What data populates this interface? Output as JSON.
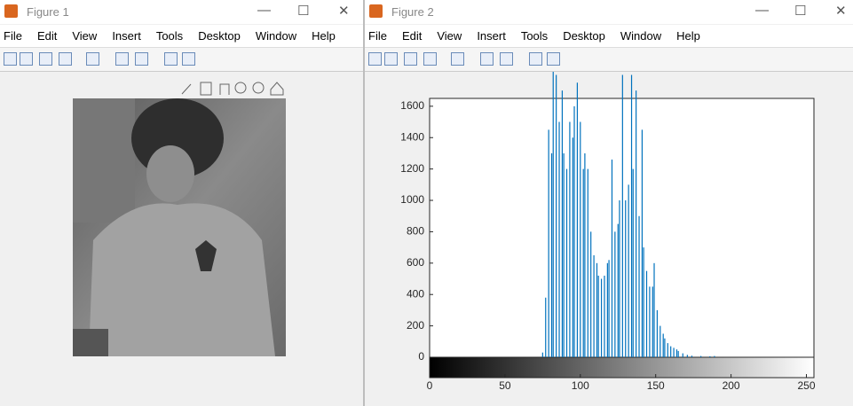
{
  "windows": [
    {
      "title": "Figure 1",
      "menu": [
        "File",
        "Edit",
        "View",
        "Insert",
        "Tools",
        "Desktop",
        "Window",
        "Help"
      ]
    },
    {
      "title": "Figure 2",
      "menu": [
        "File",
        "Edit",
        "View",
        "Insert",
        "Tools",
        "Desktop",
        "Window",
        "Help"
      ],
      "chart_data": {
        "type": "stem",
        "color": "#0072bd",
        "x": [
          75,
          77,
          79,
          81,
          82,
          84,
          86,
          88,
          89,
          91,
          93,
          95,
          96,
          98,
          100,
          102,
          103,
          105,
          107,
          109,
          111,
          112,
          114,
          116,
          118,
          119,
          121,
          123,
          125,
          126,
          128,
          130,
          132,
          134,
          135,
          137,
          139,
          141,
          142,
          144,
          146,
          148,
          149,
          151,
          153,
          155,
          156,
          158,
          160,
          162,
          164,
          165,
          168,
          171,
          174,
          180,
          186,
          189
        ],
        "values": [
          30,
          380,
          1450,
          1300,
          1900,
          1800,
          1500,
          1700,
          1300,
          1200,
          1500,
          1400,
          1600,
          1750,
          1500,
          1200,
          1300,
          1200,
          800,
          650,
          600,
          520,
          500,
          520,
          600,
          620,
          1260,
          800,
          850,
          1000,
          1800,
          1000,
          1100,
          1800,
          1200,
          1700,
          900,
          1450,
          700,
          550,
          450,
          450,
          600,
          300,
          200,
          150,
          120,
          90,
          70,
          60,
          50,
          40,
          25,
          15,
          10,
          8,
          6,
          8
        ],
        "xlim": [
          0,
          255
        ],
        "xticks": [
          0,
          50,
          100,
          150,
          200,
          250
        ],
        "ylim": [
          0,
          1650
        ],
        "yticks": [
          0,
          200,
          400,
          600,
          800,
          1000,
          1200,
          1400,
          1600
        ]
      }
    }
  ]
}
